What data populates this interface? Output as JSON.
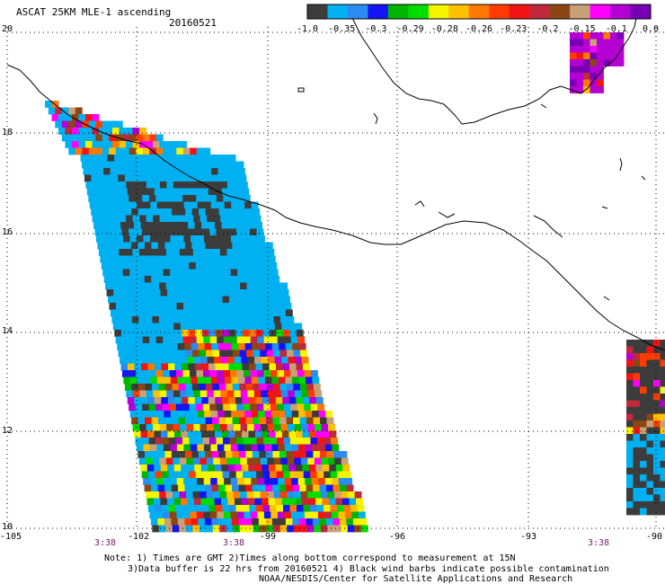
{
  "header": {
    "title": "ASCAT 25KM MLE-1 ascending",
    "date": "20160521"
  },
  "colorbar": {
    "labels": [
      "-1.0",
      "-0.35",
      "-0.3",
      "-0.29",
      "-0.28",
      "-0.26",
      "-0.23",
      "-0.2",
      "-0.15",
      "-0.1",
      "0.0"
    ],
    "colors": [
      "#3c3c3c",
      "#00b0f0",
      "#2a8cf0",
      "#1414f5",
      "#00b400",
      "#00dc00",
      "#f5f500",
      "#ffc000",
      "#ff7800",
      "#ff3c00",
      "#f01414",
      "#c0283c",
      "#8c4614",
      "#c8a078",
      "#ff00ff",
      "#b400d2",
      "#7800b4"
    ]
  },
  "axes": {
    "lat_labels": [
      "20",
      "18",
      "16",
      "14",
      "12",
      "10"
    ],
    "lon_labels": [
      "-105",
      "-102",
      "-99",
      "-96",
      "-93",
      "-90"
    ],
    "time_labels": [
      "3:38",
      "3:38",
      "3:38"
    ]
  },
  "notes": {
    "line1": "Note: 1) Times are GMT 2)Times along bottom correspond to measurement at 15N",
    "line2": "3)Data buffer is 22 hrs from 20160521 4) Black wind barbs indicate possible contamination",
    "line3": "NOAA/NESDIS/Center for Satellite Applications and Research"
  }
}
